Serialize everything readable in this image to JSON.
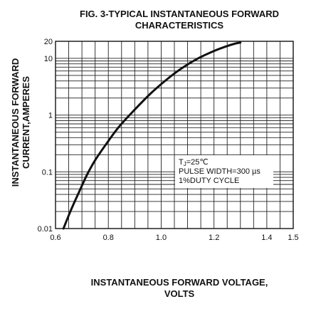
{
  "chart_data": {
    "type": "line",
    "title": [
      "FIG. 3-TYPICAL INSTANTANEOUS FORWARD",
      "CHARACTERISTICS"
    ],
    "xlabel": [
      "INSTANTANEOUS FORWARD VOLTAGE,",
      "VOLTS"
    ],
    "ylabel": [
      "INSTANTANEOUS FORWARD",
      "CURRENT,AMPERES"
    ],
    "x_scale": "linear",
    "y_scale": "log",
    "xlim": [
      0.6,
      1.5
    ],
    "ylim": [
      0.01,
      20
    ],
    "x_ticks": [
      0.6,
      0.8,
      1.0,
      1.2,
      1.4,
      1.5
    ],
    "x_tick_labels": [
      "0.6",
      "0.8",
      "1.0",
      "1.2",
      "1.4",
      "1.5"
    ],
    "y_ticks": [
      0.01,
      0.1,
      1,
      10,
      20
    ],
    "y_tick_labels": [
      "0.01",
      "0.1",
      "1",
      "10",
      "20"
    ],
    "grid": true,
    "annotation": [
      "TJ=25℃",
      "PULSE WIDTH=300 µs",
      "1%DUTY CYCLE"
    ],
    "series": [
      {
        "x": [
          0.63,
          0.66,
          0.69,
          0.72,
          0.75,
          0.79,
          0.84,
          0.9,
          0.96,
          1.02,
          1.08,
          1.14,
          1.2,
          1.25,
          1.28,
          1.3
        ],
        "y": [
          0.01,
          0.022,
          0.045,
          0.09,
          0.16,
          0.3,
          0.62,
          1.25,
          2.4,
          4.2,
          6.8,
          10.0,
          13.5,
          16.5,
          18.2,
          19.0
        ]
      }
    ]
  }
}
